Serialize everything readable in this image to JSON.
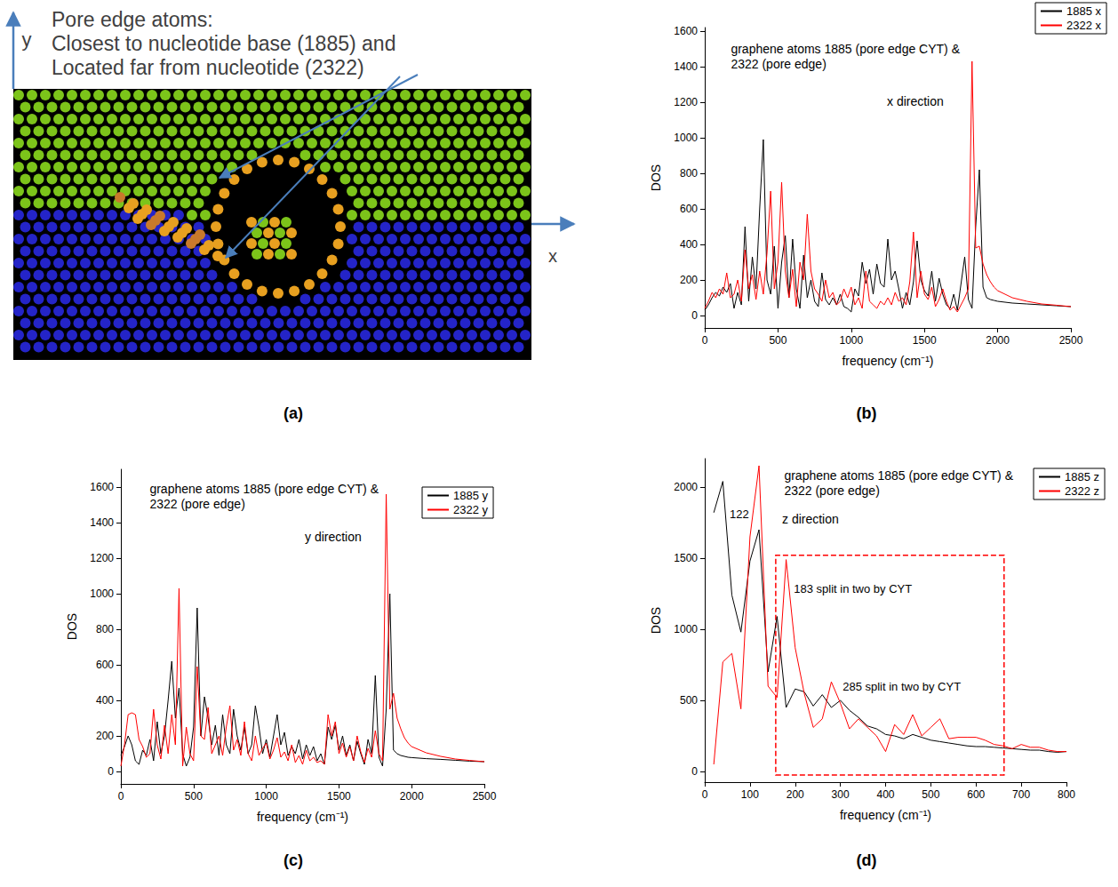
{
  "diagram": {
    "panel": "(a)",
    "text": [
      "Pore edge atoms:",
      "Closest to nucleotide base (1885) and",
      "Located far from nucleotide (2322)"
    ],
    "x_axis": "x",
    "y_axis": "y"
  },
  "chart_data": [
    {
      "type": "line",
      "panel": "(b)",
      "title": "graphene atoms 1885 (pore edge CYT) &\n2322 (pore edge)",
      "subtitle": "x direction",
      "x_label": "frequency (cm⁻¹)",
      "y_label": "DOS",
      "x": [
        0,
        25,
        50,
        75,
        100,
        125,
        150,
        175,
        200,
        225,
        250,
        275,
        300,
        325,
        350,
        375,
        400,
        425,
        450,
        475,
        500,
        525,
        550,
        575,
        600,
        625,
        650,
        675,
        700,
        725,
        750,
        775,
        800,
        825,
        850,
        875,
        900,
        925,
        950,
        975,
        1000,
        1025,
        1050,
        1075,
        1100,
        1125,
        1150,
        1175,
        1200,
        1225,
        1250,
        1275,
        1300,
        1325,
        1350,
        1375,
        1400,
        1425,
        1450,
        1475,
        1500,
        1525,
        1550,
        1575,
        1600,
        1625,
        1650,
        1675,
        1700,
        1725,
        1750,
        1775,
        1800,
        1825,
        1850,
        1875,
        1900,
        1925,
        1950,
        1975,
        2000,
        2100,
        2200,
        2300,
        2400,
        2500
      ],
      "series": [
        {
          "name": "1885 x",
          "color": "#000000",
          "values": [
            30,
            60,
            100,
            130,
            110,
            160,
            130,
            180,
            40,
            130,
            60,
            500,
            80,
            330,
            150,
            600,
            990,
            200,
            120,
            390,
            40,
            300,
            450,
            100,
            430,
            150,
            40,
            340,
            100,
            200,
            80,
            50,
            240,
            90,
            60,
            100,
            60,
            120,
            50,
            40,
            20,
            150,
            110,
            300,
            180,
            260,
            120,
            290,
            180,
            160,
            430,
            200,
            250,
            150,
            40,
            130,
            60,
            190,
            420,
            200,
            140,
            110,
            250,
            80,
            210,
            120,
            60,
            40,
            120,
            30,
            180,
            330,
            90,
            40,
            500,
            820,
            160,
            100,
            90,
            85,
            80,
            70,
            65,
            60,
            55,
            50
          ]
        },
        {
          "name": "2322 x",
          "color": "#ff0000",
          "values": [
            40,
            80,
            130,
            100,
            150,
            120,
            240,
            100,
            120,
            200,
            80,
            370,
            150,
            230,
            90,
            250,
            120,
            350,
            700,
            150,
            300,
            750,
            250,
            100,
            260,
            50,
            300,
            200,
            570,
            250,
            150,
            120,
            80,
            200,
            100,
            130,
            60,
            80,
            150,
            100,
            160,
            60,
            100,
            40,
            250,
            80,
            60,
            40,
            80,
            60,
            100,
            60,
            130,
            80,
            100,
            60,
            190,
            470,
            100,
            250,
            120,
            90,
            160,
            50,
            90,
            150,
            80,
            30,
            50,
            20,
            60,
            100,
            150,
            1430,
            380,
            390,
            290,
            230,
            190,
            160,
            140,
            100,
            80,
            65,
            58,
            50
          ]
        }
      ],
      "xlim": [
        0,
        2500
      ],
      "ylim": [
        -70,
        1620
      ],
      "xticks": [
        0,
        500,
        1000,
        1500,
        2000,
        2500
      ],
      "yticks": [
        0,
        200,
        400,
        600,
        800,
        1000,
        1200,
        1400,
        1600
      ],
      "grid": false,
      "legend": "upper right"
    },
    {
      "type": "line",
      "panel": "(c)",
      "title": "graphene atoms 1885 (pore edge CYT) &\n2322 (pore edge)",
      "subtitle": "y direction",
      "x_label": "frequency (cm⁻¹)",
      "y_label": "DOS",
      "x": [
        0,
        25,
        50,
        75,
        100,
        125,
        150,
        175,
        200,
        225,
        250,
        275,
        300,
        325,
        350,
        375,
        400,
        425,
        450,
        475,
        500,
        525,
        550,
        575,
        600,
        625,
        650,
        675,
        700,
        725,
        750,
        775,
        800,
        825,
        850,
        875,
        900,
        925,
        950,
        975,
        1000,
        1025,
        1050,
        1075,
        1100,
        1125,
        1150,
        1175,
        1200,
        1225,
        1250,
        1275,
        1300,
        1325,
        1350,
        1375,
        1400,
        1425,
        1450,
        1475,
        1500,
        1525,
        1550,
        1575,
        1600,
        1625,
        1650,
        1675,
        1700,
        1725,
        1750,
        1775,
        1800,
        1825,
        1850,
        1875,
        1900,
        1925,
        1950,
        1975,
        2000,
        2100,
        2200,
        2300,
        2400,
        2500
      ],
      "series": [
        {
          "name": "1885 y",
          "color": "#000000",
          "values": [
            90,
            140,
            200,
            150,
            60,
            40,
            120,
            90,
            180,
            60,
            280,
            100,
            200,
            400,
            620,
            300,
            470,
            100,
            30,
            80,
            250,
            920,
            200,
            420,
            300,
            150,
            260,
            90,
            320,
            150,
            100,
            350,
            200,
            120,
            250,
            100,
            150,
            370,
            250,
            100,
            180,
            80,
            200,
            320,
            150,
            220,
            90,
            140,
            100,
            180,
            70,
            150,
            90,
            140,
            60,
            100,
            40,
            250,
            180,
            260,
            120,
            200,
            90,
            150,
            60,
            170,
            100,
            40,
            180,
            100,
            540,
            80,
            30,
            350,
            1000,
            120,
            100,
            90,
            85,
            80,
            78,
            72,
            68,
            63,
            58,
            55
          ]
        },
        {
          "name": "2322 y",
          "color": "#ff0000",
          "values": [
            30,
            150,
            320,
            330,
            320,
            180,
            140,
            80,
            100,
            350,
            150,
            70,
            260,
            100,
            320,
            150,
            1030,
            30,
            250,
            100,
            60,
            590,
            200,
            180,
            360,
            100,
            150,
            200,
            90,
            250,
            370,
            120,
            180,
            90,
            280,
            100,
            60,
            200,
            90,
            130,
            160,
            70,
            120,
            190,
            80,
            110,
            60,
            150,
            50,
            90,
            40,
            120,
            60,
            80,
            50,
            60,
            40,
            320,
            200,
            280,
            100,
            160,
            80,
            140,
            60,
            200,
            110,
            50,
            130,
            80,
            230,
            100,
            60,
            1560,
            350,
            440,
            300,
            240,
            190,
            160,
            140,
            105,
            85,
            70,
            62,
            55
          ]
        }
      ],
      "xlim": [
        0,
        2500
      ],
      "ylim": [
        -70,
        1700
      ],
      "xticks": [
        0,
        500,
        1000,
        1500,
        2000,
        2500
      ],
      "yticks": [
        0,
        200,
        400,
        600,
        800,
        1000,
        1200,
        1400,
        1600
      ],
      "grid": false,
      "legend": "upper right"
    },
    {
      "type": "line",
      "panel": "(d)",
      "title": "graphene atoms 1885 (pore edge CYT) &\n2322 (pore edge)",
      "subtitle": "z direction",
      "x_label": "frequency (cm⁻¹)",
      "y_label": "DOS",
      "x": [
        20,
        40,
        60,
        80,
        100,
        120,
        140,
        160,
        180,
        200,
        220,
        240,
        260,
        280,
        300,
        320,
        340,
        360,
        380,
        400,
        420,
        440,
        460,
        480,
        500,
        520,
        540,
        560,
        580,
        600,
        620,
        640,
        660,
        680,
        700,
        720,
        740,
        760,
        780,
        800
      ],
      "series": [
        {
          "name": "1885 z",
          "color": "#000000",
          "values": [
            1820,
            2040,
            1240,
            980,
            1480,
            1700,
            700,
            1090,
            450,
            580,
            560,
            460,
            540,
            450,
            500,
            430,
            380,
            320,
            300,
            260,
            250,
            230,
            260,
            240,
            220,
            210,
            200,
            190,
            180,
            175,
            175,
            170,
            165,
            160,
            155,
            150,
            150,
            140,
            135,
            140
          ]
        },
        {
          "name": "2322 z",
          "color": "#ff0000",
          "values": [
            50,
            770,
            830,
            440,
            1650,
            2150,
            600,
            520,
            1490,
            870,
            550,
            310,
            370,
            630,
            480,
            300,
            370,
            310,
            250,
            140,
            330,
            260,
            400,
            250,
            310,
            370,
            230,
            240,
            240,
            240,
            220,
            190,
            180,
            160,
            190,
            170,
            170,
            150,
            140,
            140
          ]
        }
      ],
      "xlim": [
        0,
        800
      ],
      "ylim": [
        -75,
        2200
      ],
      "xticks": [
        0,
        100,
        200,
        300,
        400,
        500,
        600,
        700,
        800
      ],
      "yticks": [
        0,
        500,
        1000,
        1500,
        2000
      ],
      "annotations": [
        {
          "text": "122",
          "x": 55,
          "y": 1810
        },
        {
          "text": "183 split in two by CYT",
          "x": 197,
          "y": 1287
        },
        {
          "text": "285 split in two by CYT",
          "x": 305,
          "y": 600
        }
      ],
      "highlight_box": {
        "x": [
          157,
          662
        ],
        "y": [
          -25,
          1520
        ],
        "color": "#ff0000"
      },
      "grid": false,
      "legend": "upper right"
    }
  ]
}
